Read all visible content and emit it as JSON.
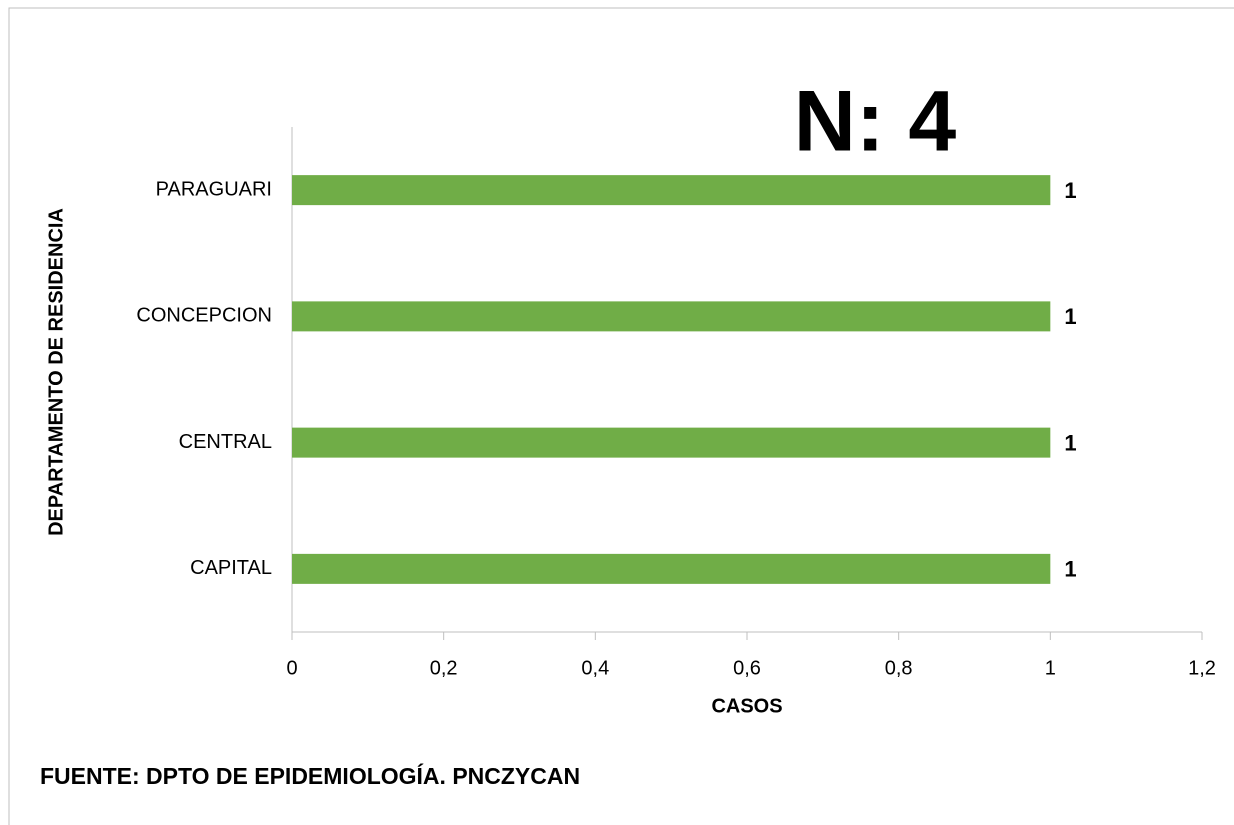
{
  "chart_data": {
    "type": "bar",
    "orientation": "horizontal",
    "annotation": "N: 4",
    "xlabel": "CASOS",
    "ylabel": "DEPARTAMENTO DE RESIDENCIA",
    "footer": "FUENTE: DPTO DE EPIDEMIOLOGÍA.  PNCZYCAN",
    "categories": [
      "PARAGUARI",
      "CONCEPCION",
      "CENTRAL",
      "CAPITAL"
    ],
    "values": [
      1,
      1,
      1,
      1
    ],
    "color": "#70ad47",
    "xlim": [
      0,
      1.2
    ],
    "xticks": [
      0,
      {
        "value": 0.2,
        "label": "0,2"
      },
      {
        "value": 0.4,
        "label": "0,4"
      },
      {
        "value": 0.6,
        "label": "0,6"
      },
      {
        "value": 0.8,
        "label": "0,8"
      },
      1,
      {
        "value": 1.2,
        "label": "1,2"
      }
    ],
    "grid": false
  }
}
